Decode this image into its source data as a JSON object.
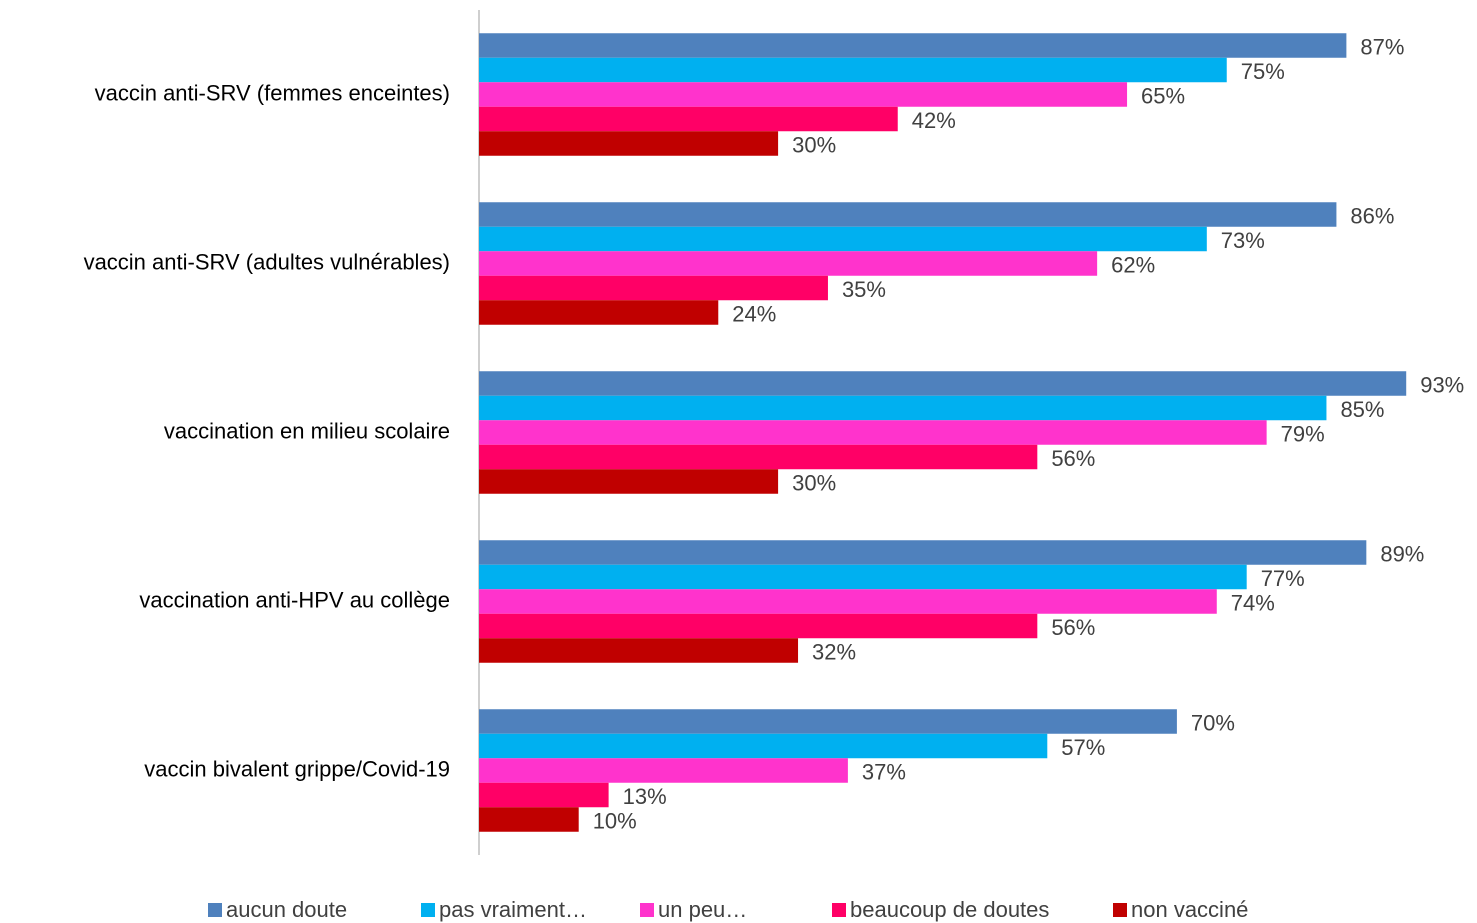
{
  "chart_data": {
    "type": "barh",
    "categories": [
      "vaccin anti-SRV (femmes enceintes)",
      "vaccin anti-SRV (adultes vulnérables)",
      "vaccination en milieu scolaire",
      "vaccination anti-HPV au collège",
      "vaccin bivalent grippe/Covid-19"
    ],
    "series": [
      {
        "name": "aucun doute",
        "color": "#4f81bd",
        "values": [
          87,
          86,
          93,
          89,
          70
        ],
        "value_labels": [
          "87%",
          "86%",
          "93%",
          "89%",
          "70%"
        ]
      },
      {
        "name": "pas vraiment…",
        "color": "#00b0f0",
        "values": [
          75,
          73,
          85,
          77,
          57
        ],
        "value_labels": [
          "75%",
          "73%",
          "85%",
          "77%",
          "57%"
        ]
      },
      {
        "name": "un peu…",
        "color": "#ff33cc",
        "values": [
          65,
          62,
          79,
          74,
          37
        ],
        "value_labels": [
          "65%",
          "62%",
          "79%",
          "74%",
          "37%"
        ]
      },
      {
        "name": "beaucoup de doutes",
        "color": "#ff0066",
        "values": [
          42,
          35,
          56,
          56,
          13
        ],
        "value_labels": [
          "42%",
          "35%",
          "56%",
          "56%",
          "13%"
        ]
      },
      {
        "name": "non vacciné",
        "color": "#c00000",
        "values": [
          30,
          24,
          30,
          32,
          10
        ],
        "value_labels": [
          "30%",
          "24%",
          "30%",
          "32%",
          "10%"
        ]
      }
    ],
    "xlim": [
      0,
      100
    ],
    "legend": "bottom"
  }
}
